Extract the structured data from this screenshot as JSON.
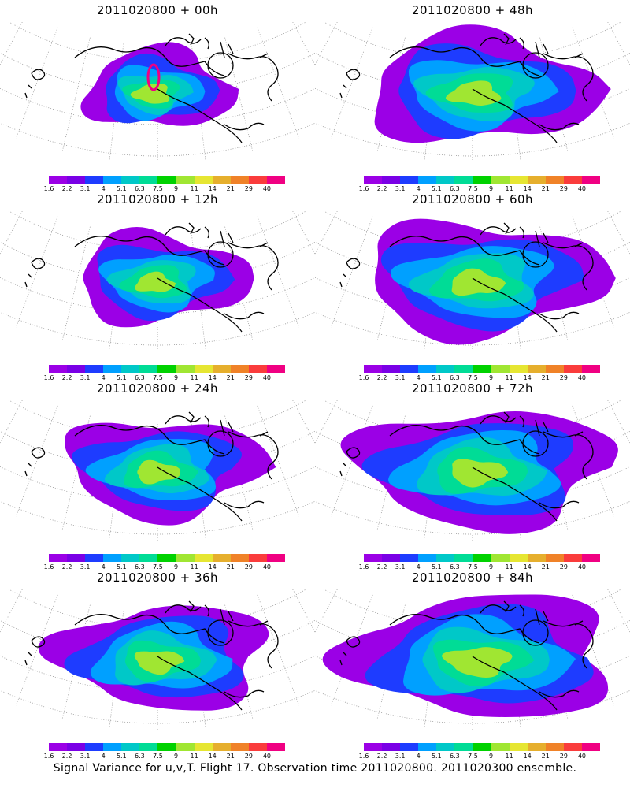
{
  "panels": [
    {
      "title": "2011020800  + 00h",
      "spread": 0.3,
      "peak": 0.62,
      "marker": true
    },
    {
      "title": "2011020800  + 48h",
      "spread": 0.78,
      "peak": 0.55,
      "marker": false
    },
    {
      "title": "2011020800  + 12h",
      "spread": 0.45,
      "peak": 0.55,
      "marker": false
    },
    {
      "title": "2011020800  + 60h",
      "spread": 0.85,
      "peak": 0.55,
      "marker": false
    },
    {
      "title": "2011020800  + 24h",
      "spread": 0.6,
      "peak": 0.55,
      "marker": false
    },
    {
      "title": "2011020800  + 72h",
      "spread": 0.92,
      "peak": 0.55,
      "marker": false
    },
    {
      "title": "2011020800  + 36h",
      "spread": 0.68,
      "peak": 0.55,
      "marker": false
    },
    {
      "title": "2011020800  + 84h",
      "spread": 1.0,
      "peak": 0.6,
      "marker": false
    }
  ],
  "legend": {
    "labels": [
      "1.6",
      "2.2",
      "3.1",
      "4",
      "5.1",
      "6.3",
      "7.5",
      "9",
      "11",
      "14",
      "21",
      "29",
      "40"
    ],
    "colors": [
      "#9b00e6",
      "#7a00e6",
      "#1e3cff",
      "#00a0ff",
      "#00c8c8",
      "#00dc96",
      "#00d200",
      "#a0e632",
      "#e6e632",
      "#e6af2d",
      "#f08228",
      "#fa3c3c",
      "#f00082"
    ]
  },
  "caption": "Signal Variance for u,v,T. Flight 17. Observation time 2011020800. 2011020300 ensemble."
}
